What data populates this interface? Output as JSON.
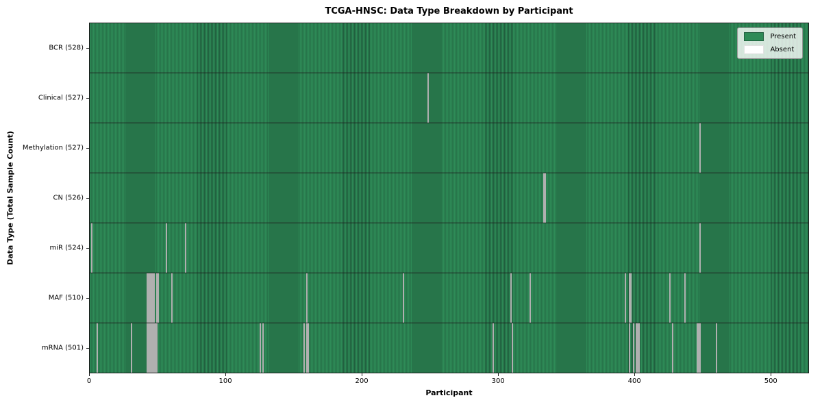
{
  "colors": {
    "present": "#2e8b57",
    "present_edge": "#205f3e",
    "absent": "#fcfcfc",
    "absent_edge": "#b0b0b0",
    "row_divider": "#1c1c1c",
    "spine": "#1a1a1a",
    "legend_border": "#999999"
  },
  "chart_data": {
    "type": "heatmap",
    "title": "TCGA-HNSC: Data Type Breakdown by Participant",
    "xlabel": "Participant",
    "ylabel": "Data Type (Total Sample Count)",
    "legend_position": "upper right",
    "legend": [
      {
        "label": "Present",
        "color": "#2e8b57"
      },
      {
        "label": "Absent",
        "color": "#ffffff"
      }
    ],
    "total_participants": 528,
    "x_axis": {
      "min": 0,
      "max": 528,
      "ticks": [
        0,
        100,
        200,
        300,
        400,
        500
      ]
    },
    "rows": [
      {
        "key": "bcr",
        "label": "BCR (528)",
        "present_count": 528,
        "absent_participants": []
      },
      {
        "key": "clinical",
        "label": "Clinical (527)",
        "present_count": 527,
        "absent_participants": [
          248
        ]
      },
      {
        "key": "methylation",
        "label": "Methylation (527)",
        "present_count": 527,
        "absent_participants": [
          448
        ]
      },
      {
        "key": "cn",
        "label": "CN (526)",
        "present_count": 526,
        "absent_participants": [
          333,
          334
        ]
      },
      {
        "key": "mir",
        "label": "miR (524)",
        "present_count": 524,
        "absent_participants": [
          1,
          56,
          70,
          448
        ]
      },
      {
        "key": "maf",
        "label": "MAF (510)",
        "present_count": 510,
        "absent_participants": [
          42,
          43,
          44,
          45,
          46,
          47,
          49,
          50,
          60,
          159,
          230,
          309,
          323,
          393,
          396,
          397,
          426,
          437
        ]
      },
      {
        "key": "mrna",
        "label": "mRNA (501)",
        "present_count": 501,
        "absent_participants": [
          5,
          30,
          42,
          43,
          44,
          45,
          46,
          47,
          48,
          49,
          125,
          127,
          157,
          159,
          160,
          296,
          310,
          396,
          399,
          401,
          402,
          403,
          428,
          446,
          447,
          448,
          460
        ]
      }
    ]
  }
}
